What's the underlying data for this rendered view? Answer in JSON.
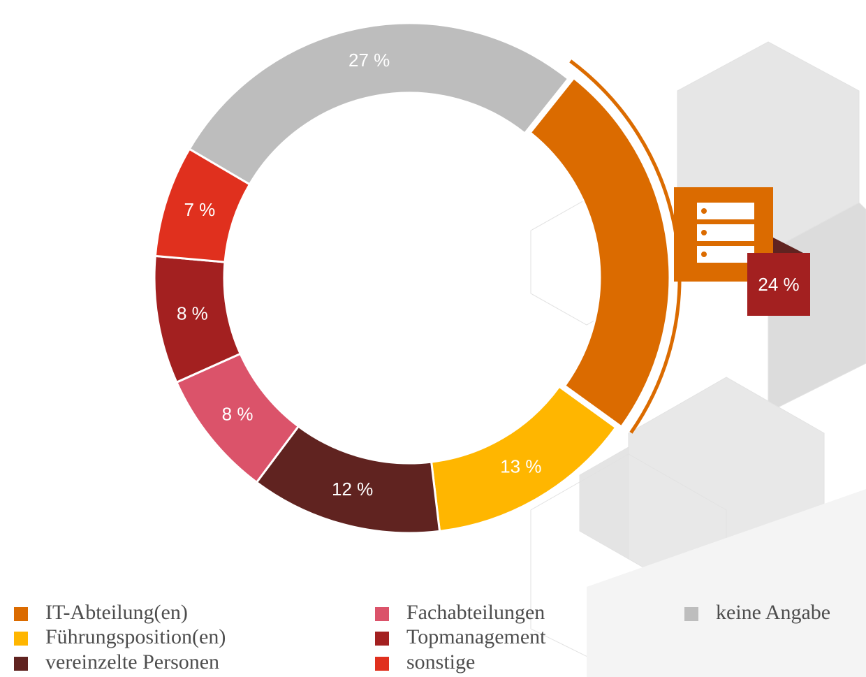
{
  "chart_data": {
    "type": "donut",
    "categories": [
      "IT-Abteilung(en)",
      "Führungsposition(en)",
      "vereinzelte Personen",
      "Fachabteilungen",
      "Topmanagement",
      "sonstige",
      "keine Angabe"
    ],
    "values": [
      24,
      13,
      12,
      8,
      8,
      7,
      27
    ],
    "value_labels": [
      "24 %",
      "13 %",
      "12 %",
      "8 %",
      "8 %",
      "7 %",
      "27 %"
    ],
    "colors": [
      "#db6b00",
      "#ffb600",
      "#602320",
      "#db536a",
      "#a32020",
      "#e0301e",
      "#bdbdbd"
    ]
  }
}
